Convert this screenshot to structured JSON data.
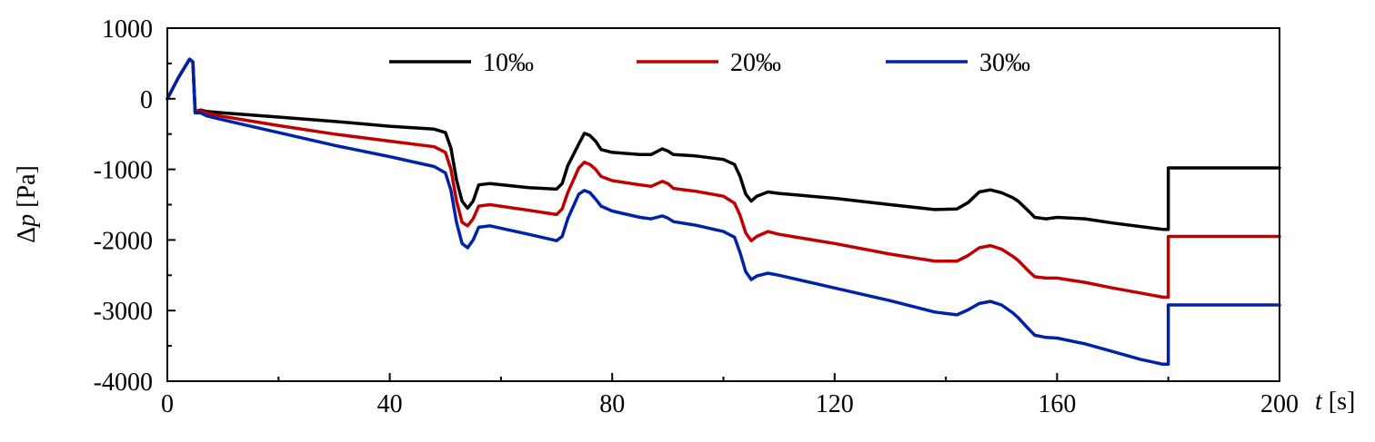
{
  "chart_data": {
    "type": "line",
    "xlim": [
      0,
      200
    ],
    "ylim": [
      -4000,
      1000
    ],
    "x_ticks": [
      0,
      40,
      80,
      120,
      160,
      200
    ],
    "x_tick_labels": [
      "0",
      "40",
      "80",
      "120",
      "160",
      "200"
    ],
    "y_ticks": [
      1000,
      0,
      -1000,
      -2000,
      -3000,
      -4000
    ],
    "y_tick_labels": [
      "1000",
      "0",
      "-1000",
      "-2000",
      "-3000",
      "-4000"
    ],
    "x_minor_step": 20,
    "y_minor_step": 500,
    "xlabel_symbol": "t",
    "xlabel_unit": " [s]",
    "ylabel_symbol": "p",
    "ylabel_prefix": "Δ",
    "ylabel_unit": " [Pa]",
    "legend_position": "top",
    "grid": false,
    "series": [
      {
        "name": "10‰",
        "color": "#000000",
        "points": [
          [
            0,
            0
          ],
          [
            2,
            300
          ],
          [
            4,
            560
          ],
          [
            4.6,
            520
          ],
          [
            5,
            -180
          ],
          [
            6,
            -160
          ],
          [
            7,
            -180
          ],
          [
            10,
            -200
          ],
          [
            20,
            -260
          ],
          [
            30,
            -320
          ],
          [
            40,
            -390
          ],
          [
            48,
            -430
          ],
          [
            50,
            -480
          ],
          [
            51,
            -700
          ],
          [
            52,
            -1150
          ],
          [
            53,
            -1450
          ],
          [
            54,
            -1550
          ],
          [
            55,
            -1450
          ],
          [
            56,
            -1220
          ],
          [
            58,
            -1200
          ],
          [
            65,
            -1260
          ],
          [
            70,
            -1280
          ],
          [
            71,
            -1200
          ],
          [
            72,
            -950
          ],
          [
            74,
            -640
          ],
          [
            75,
            -490
          ],
          [
            76,
            -520
          ],
          [
            77,
            -600
          ],
          [
            78,
            -720
          ],
          [
            80,
            -760
          ],
          [
            85,
            -790
          ],
          [
            87,
            -790
          ],
          [
            89,
            -710
          ],
          [
            90,
            -740
          ],
          [
            91,
            -790
          ],
          [
            95,
            -810
          ],
          [
            100,
            -860
          ],
          [
            102,
            -930
          ],
          [
            103,
            -1100
          ],
          [
            104,
            -1350
          ],
          [
            105,
            -1450
          ],
          [
            106,
            -1380
          ],
          [
            108,
            -1320
          ],
          [
            110,
            -1340
          ],
          [
            120,
            -1410
          ],
          [
            130,
            -1500
          ],
          [
            138,
            -1570
          ],
          [
            142,
            -1560
          ],
          [
            144,
            -1470
          ],
          [
            146,
            -1320
          ],
          [
            148,
            -1290
          ],
          [
            150,
            -1330
          ],
          [
            152,
            -1400
          ],
          [
            153,
            -1450
          ],
          [
            155,
            -1600
          ],
          [
            156,
            -1680
          ],
          [
            158,
            -1700
          ],
          [
            160,
            -1680
          ],
          [
            165,
            -1700
          ],
          [
            170,
            -1760
          ],
          [
            175,
            -1810
          ],
          [
            179,
            -1850
          ],
          [
            180,
            -1850
          ],
          [
            180,
            -980
          ],
          [
            200,
            -980
          ]
        ]
      },
      {
        "name": "20‰",
        "color": "#c00000",
        "points": [
          [
            0,
            0
          ],
          [
            2,
            300
          ],
          [
            4,
            560
          ],
          [
            4.6,
            520
          ],
          [
            5,
            -180
          ],
          [
            6,
            -170
          ],
          [
            7,
            -200
          ],
          [
            10,
            -250
          ],
          [
            20,
            -380
          ],
          [
            30,
            -500
          ],
          [
            40,
            -600
          ],
          [
            48,
            -680
          ],
          [
            50,
            -760
          ],
          [
            51,
            -1000
          ],
          [
            52,
            -1450
          ],
          [
            53,
            -1750
          ],
          [
            54,
            -1800
          ],
          [
            55,
            -1700
          ],
          [
            56,
            -1520
          ],
          [
            58,
            -1500
          ],
          [
            65,
            -1580
          ],
          [
            70,
            -1640
          ],
          [
            71,
            -1560
          ],
          [
            72,
            -1330
          ],
          [
            74,
            -980
          ],
          [
            75,
            -900
          ],
          [
            76,
            -930
          ],
          [
            77,
            -1000
          ],
          [
            78,
            -1100
          ],
          [
            80,
            -1160
          ],
          [
            85,
            -1220
          ],
          [
            87,
            -1240
          ],
          [
            89,
            -1170
          ],
          [
            90,
            -1200
          ],
          [
            91,
            -1270
          ],
          [
            95,
            -1310
          ],
          [
            100,
            -1380
          ],
          [
            102,
            -1480
          ],
          [
            103,
            -1650
          ],
          [
            104,
            -1900
          ],
          [
            105,
            -2010
          ],
          [
            106,
            -1950
          ],
          [
            108,
            -1880
          ],
          [
            110,
            -1920
          ],
          [
            120,
            -2050
          ],
          [
            130,
            -2200
          ],
          [
            138,
            -2300
          ],
          [
            142,
            -2300
          ],
          [
            144,
            -2220
          ],
          [
            146,
            -2110
          ],
          [
            148,
            -2080
          ],
          [
            150,
            -2130
          ],
          [
            152,
            -2230
          ],
          [
            153,
            -2290
          ],
          [
            155,
            -2450
          ],
          [
            156,
            -2520
          ],
          [
            158,
            -2540
          ],
          [
            160,
            -2540
          ],
          [
            165,
            -2600
          ],
          [
            170,
            -2680
          ],
          [
            175,
            -2750
          ],
          [
            179,
            -2810
          ],
          [
            180,
            -2810
          ],
          [
            180,
            -1950
          ],
          [
            200,
            -1950
          ]
        ]
      },
      {
        "name": "30‰",
        "color": "#0022aa",
        "points": [
          [
            0,
            0
          ],
          [
            2,
            300
          ],
          [
            4,
            560
          ],
          [
            4.6,
            520
          ],
          [
            5,
            -200
          ],
          [
            6,
            -200
          ],
          [
            7,
            -240
          ],
          [
            10,
            -300
          ],
          [
            20,
            -480
          ],
          [
            30,
            -660
          ],
          [
            40,
            -820
          ],
          [
            48,
            -960
          ],
          [
            50,
            -1050
          ],
          [
            51,
            -1300
          ],
          [
            52,
            -1750
          ],
          [
            53,
            -2050
          ],
          [
            54,
            -2110
          ],
          [
            55,
            -2000
          ],
          [
            56,
            -1820
          ],
          [
            58,
            -1800
          ],
          [
            65,
            -1920
          ],
          [
            70,
            -2010
          ],
          [
            71,
            -1950
          ],
          [
            72,
            -1700
          ],
          [
            74,
            -1350
          ],
          [
            75,
            -1300
          ],
          [
            76,
            -1330
          ],
          [
            77,
            -1420
          ],
          [
            78,
            -1520
          ],
          [
            80,
            -1590
          ],
          [
            85,
            -1680
          ],
          [
            87,
            -1700
          ],
          [
            89,
            -1660
          ],
          [
            90,
            -1690
          ],
          [
            91,
            -1740
          ],
          [
            95,
            -1790
          ],
          [
            100,
            -1880
          ],
          [
            102,
            -1960
          ],
          [
            103,
            -2180
          ],
          [
            104,
            -2450
          ],
          [
            105,
            -2560
          ],
          [
            106,
            -2510
          ],
          [
            108,
            -2470
          ],
          [
            110,
            -2500
          ],
          [
            120,
            -2680
          ],
          [
            130,
            -2860
          ],
          [
            138,
            -3020
          ],
          [
            142,
            -3060
          ],
          [
            144,
            -2990
          ],
          [
            146,
            -2900
          ],
          [
            148,
            -2870
          ],
          [
            150,
            -2920
          ],
          [
            152,
            -3030
          ],
          [
            153,
            -3100
          ],
          [
            155,
            -3270
          ],
          [
            156,
            -3350
          ],
          [
            158,
            -3380
          ],
          [
            160,
            -3390
          ],
          [
            165,
            -3470
          ],
          [
            170,
            -3580
          ],
          [
            175,
            -3690
          ],
          [
            179,
            -3760
          ],
          [
            180,
            -3760
          ],
          [
            180,
            -2920
          ],
          [
            200,
            -2920
          ]
        ]
      }
    ]
  }
}
